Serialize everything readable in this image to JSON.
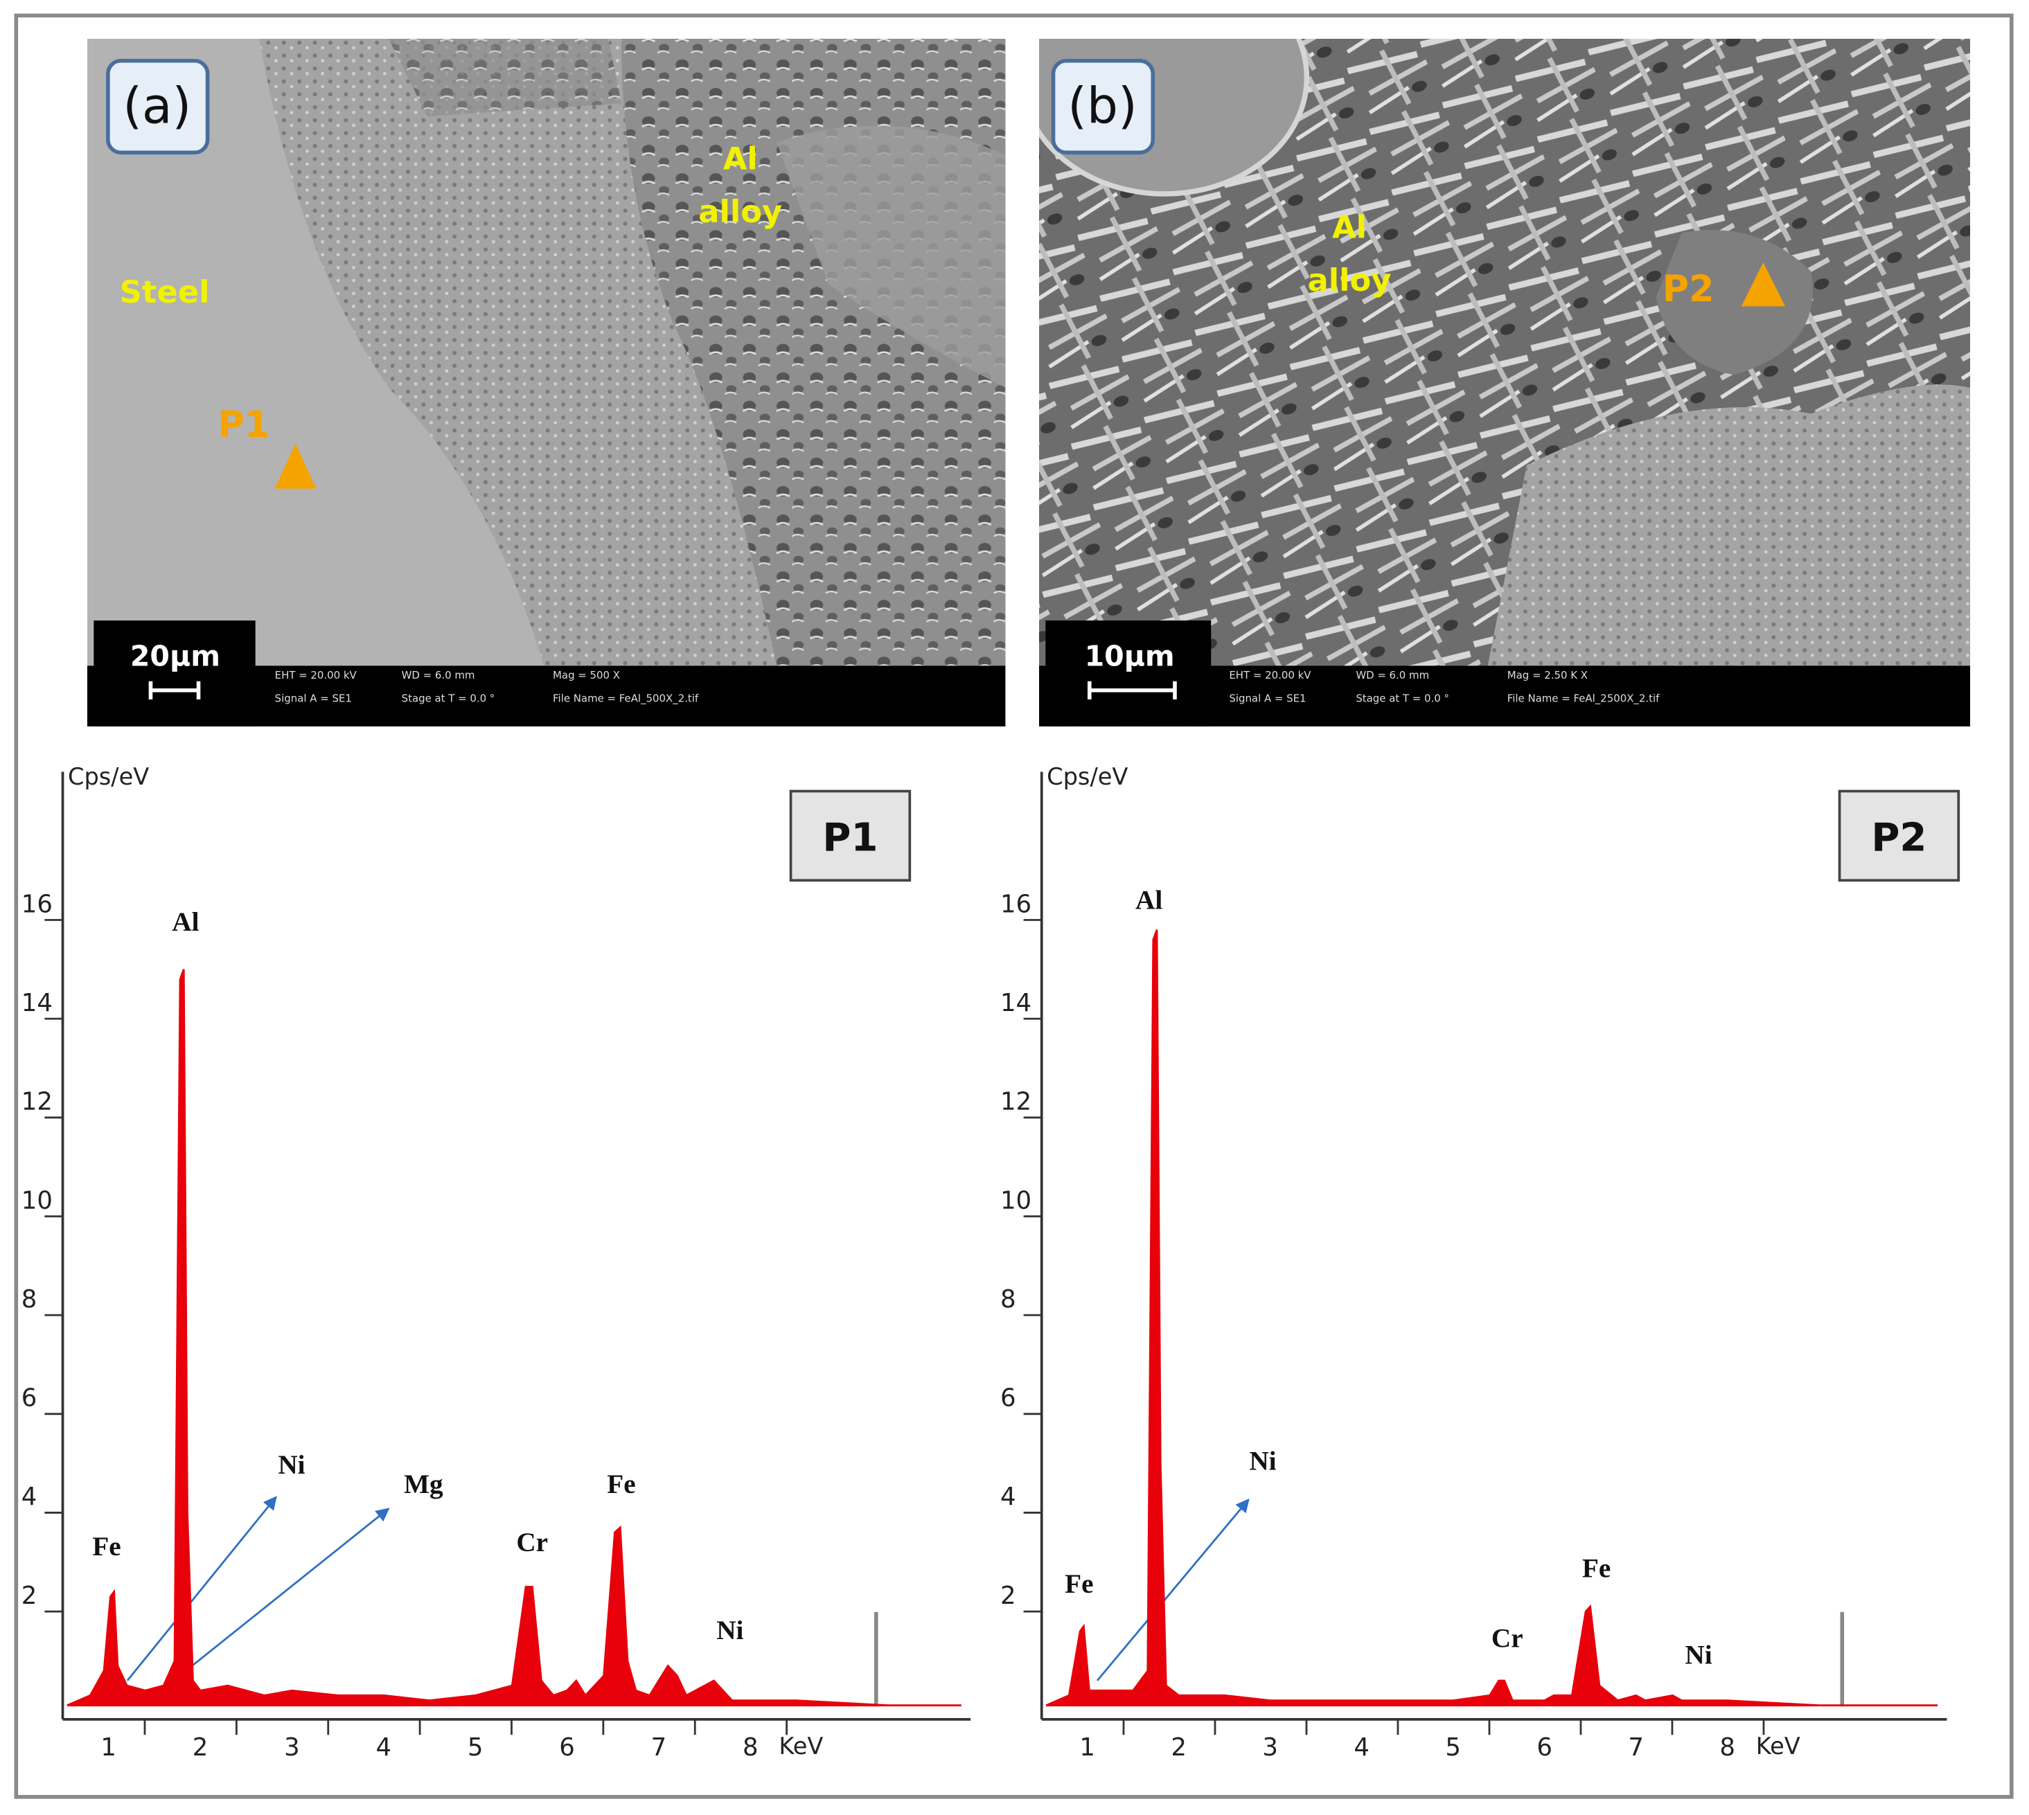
{
  "images": [
    {
      "label": "(a)",
      "scale_bar": "20µm",
      "region_labels": [
        "Steel",
        "Al",
        "alloy"
      ],
      "point": "P1",
      "info": [
        "EHT = 20.00 kV",
        "WD = 6.0 mm",
        "Mag = 500 X",
        "Signal A = SE1",
        "Stage at T = 0.0 °",
        "File Name = FeAl_500X_2.tif"
      ]
    },
    {
      "label": "(b)",
      "scale_bar": "10µm",
      "region_labels": [
        "Al",
        "alloy"
      ],
      "point": "P2",
      "info": [
        "EHT = 20.00 kV",
        "WD = 6.0 mm",
        "Mag = 2.50 K X",
        "Signal A = SE1",
        "Stage at T = 0.0 °",
        "File Name = FeAl_2500X_2.tif"
      ]
    }
  ],
  "chart_data": [
    {
      "type": "area",
      "title": "P1",
      "y_label": "Cps/eV",
      "x_label": "KeV",
      "color": "#e8000b",
      "x": [
        0.55,
        0.8,
        0.95,
        1.02,
        1.06,
        1.1,
        1.2,
        1.4,
        1.6,
        1.72,
        1.78,
        1.82,
        1.86,
        1.92,
        2.0,
        2.3,
        2.7,
        3.0,
        3.5,
        4.0,
        4.5,
        5.0,
        5.4,
        5.55,
        5.62,
        5.72,
        5.85,
        6.0,
        6.1,
        6.2,
        6.4,
        6.52,
        6.58,
        6.66,
        6.75,
        6.9,
        7.1,
        7.2,
        7.3,
        7.6,
        7.7,
        7.8,
        8.0,
        8.5,
        9.0,
        9.5,
        10.3
      ],
      "values": [
        0.1,
        0.3,
        0.8,
        2.3,
        2.4,
        0.9,
        0.5,
        0.4,
        0.5,
        1.0,
        14.8,
        15.0,
        4.0,
        0.6,
        0.4,
        0.5,
        0.3,
        0.4,
        0.3,
        0.3,
        0.2,
        0.3,
        0.5,
        2.5,
        2.5,
        0.6,
        0.3,
        0.4,
        0.6,
        0.3,
        0.7,
        3.6,
        3.7,
        1.0,
        0.4,
        0.3,
        0.9,
        0.7,
        0.3,
        0.6,
        0.4,
        0.2,
        0.2,
        0.2,
        0.15,
        0.1,
        0.1
      ],
      "xlim": [
        0.5,
        10.4
      ],
      "ylim": [
        0,
        19
      ],
      "xticks": [
        1,
        2,
        3,
        4,
        5,
        6,
        7,
        8
      ],
      "yticks": [
        2,
        4,
        6,
        8,
        10,
        12,
        14,
        16
      ],
      "annotations": [
        "Fe",
        "Al",
        "Ni",
        "Mg",
        "Cr",
        "Fe",
        "Ni"
      ]
    },
    {
      "type": "area",
      "title": "P2",
      "y_label": "Cps/eV",
      "x_label": "KeV",
      "color": "#e8000b",
      "x": [
        0.55,
        0.8,
        0.92,
        0.96,
        1.02,
        1.2,
        1.5,
        1.66,
        1.72,
        1.76,
        1.8,
        1.86,
        2.0,
        2.5,
        3.0,
        4.0,
        5.0,
        5.4,
        5.5,
        5.56,
        5.65,
        6.0,
        6.1,
        6.3,
        6.45,
        6.5,
        6.6,
        6.8,
        7.0,
        7.1,
        7.4,
        7.5,
        8.0,
        9.0,
        10.3
      ],
      "values": [
        0.1,
        0.3,
        1.6,
        1.7,
        0.4,
        0.4,
        0.4,
        0.8,
        15.6,
        15.8,
        5.0,
        0.5,
        0.3,
        0.3,
        0.2,
        0.2,
        0.2,
        0.3,
        0.6,
        0.6,
        0.2,
        0.2,
        0.3,
        0.3,
        2.0,
        2.1,
        0.5,
        0.2,
        0.3,
        0.2,
        0.3,
        0.2,
        0.2,
        0.1,
        0.1
      ],
      "xlim": [
        0.5,
        10.4
      ],
      "ylim": [
        0,
        19
      ],
      "xticks": [
        1,
        2,
        3,
        4,
        5,
        6,
        7,
        8
      ],
      "yticks": [
        2,
        4,
        6,
        8,
        10,
        12,
        14,
        16
      ],
      "annotations": [
        "Fe",
        "Al",
        "Ni",
        "Cr",
        "Fe",
        "Ni"
      ]
    }
  ]
}
